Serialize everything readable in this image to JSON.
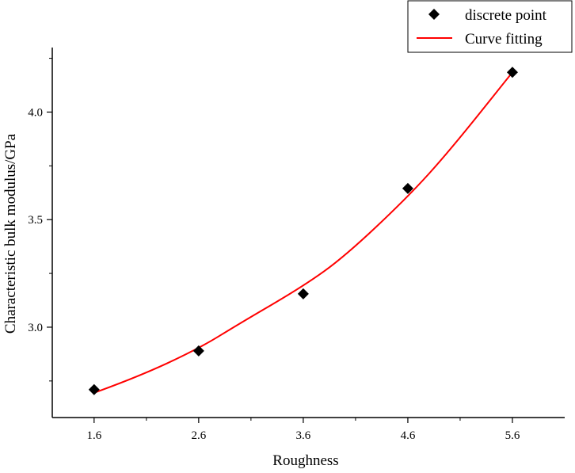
{
  "chart_data": {
    "type": "scatter",
    "title": "",
    "xlabel": "Roughness",
    "ylabel": "Characteristic bulk modulus/GPa",
    "xlim": [
      1.2,
      6.1
    ],
    "ylim": [
      2.58,
      4.3
    ],
    "xticks": [
      1.6,
      2.6,
      3.6,
      4.6,
      5.6
    ],
    "xtick_labels": [
      "1.6",
      "2.6",
      "3.6",
      "4.6",
      "5.6"
    ],
    "yticks": [
      3.0,
      3.5,
      4.0
    ],
    "ytick_labels": [
      "3.0",
      "3.5",
      "4.0"
    ],
    "grid": false,
    "legend_position": "top-right",
    "series": [
      {
        "name": "discrete point",
        "kind": "scatter",
        "marker": "diamond",
        "color": "#000000",
        "x": [
          1.6,
          2.6,
          3.6,
          4.6,
          5.6
        ],
        "y": [
          2.71,
          2.89,
          3.155,
          3.645,
          4.185
        ]
      },
      {
        "name": "Curve fitting",
        "kind": "line",
        "color": "#ff0000",
        "x": [
          1.6,
          2.0,
          2.6,
          3.0,
          3.6,
          4.0,
          4.6,
          5.0,
          5.6
        ],
        "y": [
          2.695,
          2.765,
          2.9,
          3.02,
          3.19,
          3.33,
          3.605,
          3.82,
          4.185
        ]
      }
    ]
  }
}
